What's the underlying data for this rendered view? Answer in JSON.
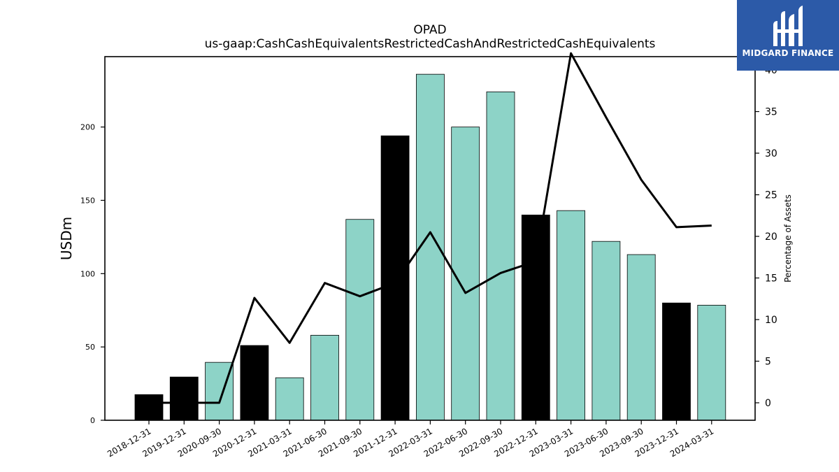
{
  "chart_data": {
    "type": "bar",
    "title": "OPAD",
    "subtitle": "us-gaap:CashCashEquivalentsRestrictedCashAndRestrictedCashEquivalents",
    "ylabel": "USDm",
    "y2label": "Percentage of Assets",
    "ylim": [
      0,
      248
    ],
    "y2lim": [
      -2.1,
      41.6
    ],
    "yticks": [
      0,
      50,
      100,
      150,
      200
    ],
    "y2ticks": [
      0,
      5,
      10,
      15,
      20,
      25,
      30,
      35,
      40
    ],
    "categories": [
      "2018-12-31",
      "2019-12-31",
      "2020-09-30",
      "2020-12-31",
      "2021-03-31",
      "2021-06-30",
      "2021-09-30",
      "2021-12-31",
      "2022-03-31",
      "2022-06-30",
      "2022-09-30",
      "2022-12-31",
      "2023-03-31",
      "2023-06-30",
      "2023-09-30",
      "2023-12-31",
      "2024-03-31"
    ],
    "series": [
      {
        "kind": "bar",
        "axis": "left",
        "values": [
          17.5,
          29.5,
          39.5,
          51,
          29,
          58,
          137,
          194,
          236,
          200,
          224,
          140,
          143,
          122,
          113,
          80,
          78.5
        ],
        "colors": [
          "#000000",
          "#000000",
          "#8dd3c7",
          "#000000",
          "#8dd3c7",
          "#8dd3c7",
          "#8dd3c7",
          "#000000",
          "#8dd3c7",
          "#8dd3c7",
          "#8dd3c7",
          "#000000",
          "#8dd3c7",
          "#8dd3c7",
          "#8dd3c7",
          "#000000",
          "#8dd3c7"
        ]
      },
      {
        "kind": "line",
        "axis": "right",
        "color": "#000000",
        "values": [
          0,
          0,
          0,
          12.6,
          7.2,
          14.4,
          12.8,
          14.4,
          20.5,
          13.2,
          15.6,
          17.0,
          42.0,
          34.3,
          26.8,
          21.1,
          21.3
        ]
      }
    ],
    "colors": {
      "highlight": "#000000",
      "normal": "#8dd3c7",
      "line": "#000000"
    }
  },
  "logo": {
    "text": "MIDGARD FINANCE",
    "bg": "#2c5aa8"
  }
}
